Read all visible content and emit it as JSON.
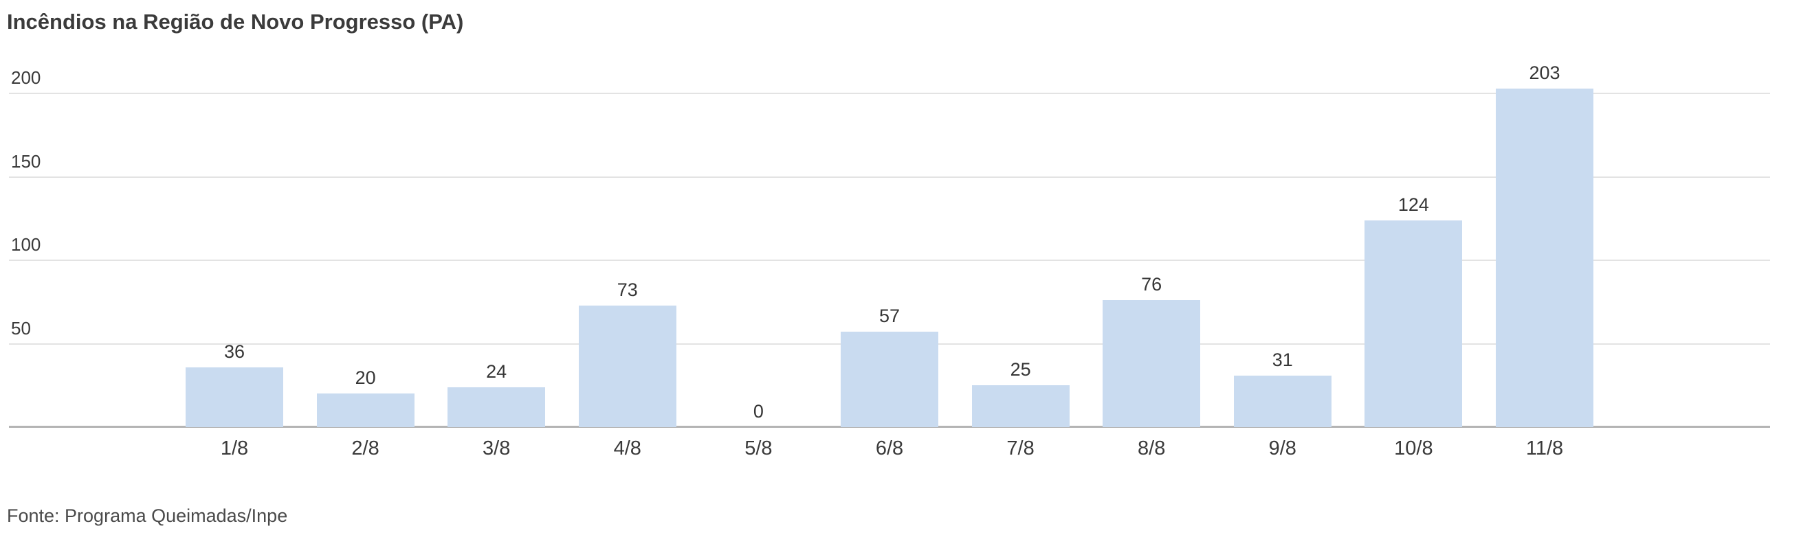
{
  "title": "Incêndios na Região de Novo Progresso (PA)",
  "source": "Fonte: Programa Queimadas/Inpe",
  "chart_data": {
    "type": "bar",
    "title": "Incêndios na Região de Novo Progresso (PA)",
    "categories": [
      "1/8",
      "2/8",
      "3/8",
      "4/8",
      "5/8",
      "6/8",
      "7/8",
      "8/8",
      "9/8",
      "10/8",
      "11/8"
    ],
    "values": [
      36,
      20,
      24,
      73,
      0,
      57,
      25,
      76,
      31,
      124,
      203
    ],
    "xlabel": "",
    "ylabel": "",
    "ylim": [
      0,
      200
    ],
    "yticks": [
      50,
      100,
      150,
      200
    ],
    "grid": true,
    "legend": false,
    "bar_color": "#c9dbf0",
    "gridline_color": "#e3e3e3",
    "baseline_color": "#b4b4b4",
    "text_color": "#3a3a3a",
    "source_text": "Fonte: Programa Queimadas/Inpe"
  }
}
